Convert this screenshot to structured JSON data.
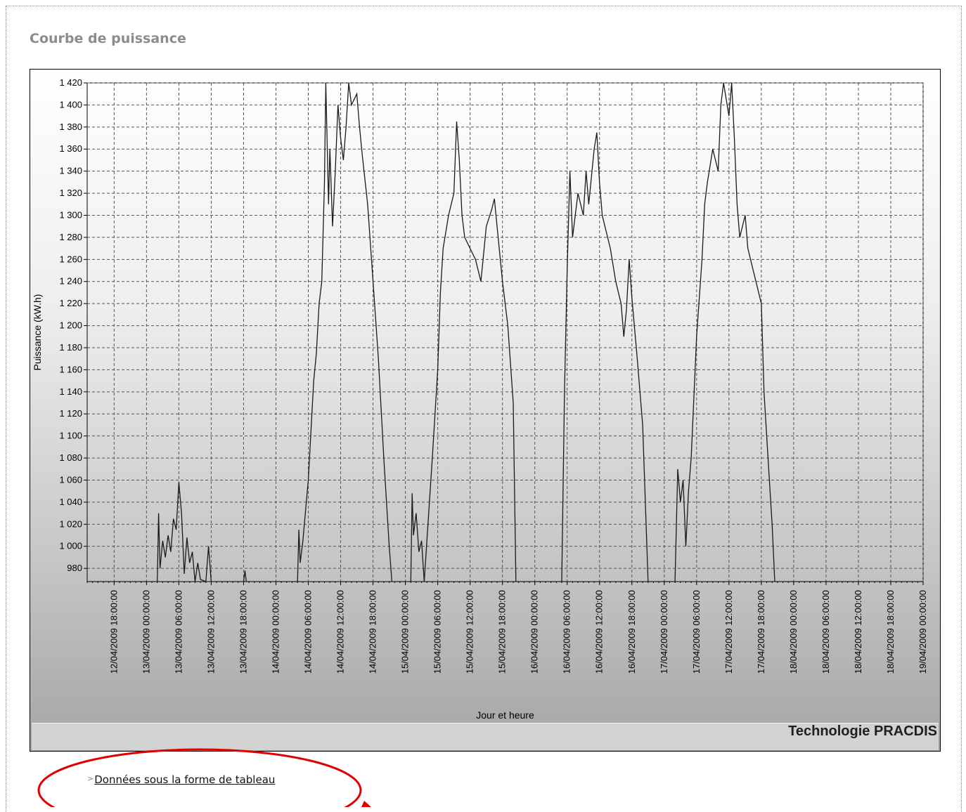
{
  "page": {
    "title": "Courbe de puissance"
  },
  "chart_footer": {
    "brand": "Technologie PRACDIS"
  },
  "table_link": {
    "label": "Données sous la forme de tableau"
  },
  "chart_data": {
    "type": "line",
    "xlabel": "Jour et heure",
    "ylabel": "Puissance (kW.h)",
    "ylim": [
      968,
      1420
    ],
    "yticks": [
      980,
      1000,
      1020,
      1040,
      1060,
      1080,
      1100,
      1120,
      1140,
      1160,
      1180,
      1200,
      1220,
      1240,
      1260,
      1280,
      1300,
      1320,
      1340,
      1360,
      1380,
      1400,
      1420
    ],
    "ytick_labels": [
      "980",
      "1 000",
      "1 020",
      "1 040",
      "1 060",
      "1 080",
      "1 100",
      "1 120",
      "1 140",
      "1 160",
      "1 180",
      "1 200",
      "1 220",
      "1 240",
      "1 260",
      "1 280",
      "1 300",
      "1 320",
      "1 340",
      "1 360",
      "1 380",
      "1 400",
      "1 420"
    ],
    "xlim": [
      "12/04/2009 13:00:00",
      "19/04/2009 00:00:00"
    ],
    "xticks": [
      "12/04/2009 18:00:00",
      "13/04/2009 00:00:00",
      "13/04/2009 06:00:00",
      "13/04/2009 12:00:00",
      "13/04/2009 18:00:00",
      "14/04/2009 00:00:00",
      "14/04/2009 06:00:00",
      "14/04/2009 12:00:00",
      "14/04/2009 18:00:00",
      "15/04/2009 00:00:00",
      "15/04/2009 06:00:00",
      "15/04/2009 12:00:00",
      "15/04/2009 18:00:00",
      "16/04/2009 00:00:00",
      "16/04/2009 06:00:00",
      "16/04/2009 12:00:00",
      "16/04/2009 18:00:00",
      "17/04/2009 00:00:00",
      "17/04/2009 06:00:00",
      "17/04/2009 12:00:00",
      "17/04/2009 18:00:00",
      "18/04/2009 00:00:00",
      "18/04/2009 06:00:00",
      "18/04/2009 12:00:00",
      "18/04/2009 18:00:00",
      "19/04/2009 00:00:00"
    ],
    "grid": true,
    "series": [
      {
        "values": [
          [
            "12/04/2009 13:00:00",
            968
          ],
          [
            "13/04/2009 02:00:00",
            968
          ],
          [
            "13/04/2009 02:15:00",
            1030
          ],
          [
            "13/04/2009 02:30:00",
            980
          ],
          [
            "13/04/2009 03:00:00",
            1005
          ],
          [
            "13/04/2009 03:30:00",
            990
          ],
          [
            "13/04/2009 04:00:00",
            1010
          ],
          [
            "13/04/2009 04:30:00",
            995
          ],
          [
            "13/04/2009 05:00:00",
            1025
          ],
          [
            "13/04/2009 05:30:00",
            1015
          ],
          [
            "13/04/2009 06:00:00",
            1058
          ],
          [
            "13/04/2009 06:30:00",
            1030
          ],
          [
            "13/04/2009 07:00:00",
            975
          ],
          [
            "13/04/2009 07:30:00",
            1008
          ],
          [
            "13/04/2009 08:00:00",
            985
          ],
          [
            "13/04/2009 08:30:00",
            995
          ],
          [
            "13/04/2009 09:00:00",
            968
          ],
          [
            "13/04/2009 09:30:00",
            985
          ],
          [
            "13/04/2009 10:00:00",
            970
          ],
          [
            "13/04/2009 11:00:00",
            968
          ],
          [
            "13/04/2009 11:30:00",
            1000
          ],
          [
            "13/04/2009 12:00:00",
            968
          ],
          [
            "13/04/2009 18:00:00",
            968
          ],
          [
            "13/04/2009 18:15:00",
            978
          ],
          [
            "13/04/2009 18:30:00",
            968
          ],
          [
            "14/04/2009 04:00:00",
            968
          ],
          [
            "14/04/2009 04:15:00",
            1015
          ],
          [
            "14/04/2009 04:30:00",
            985
          ],
          [
            "14/04/2009 05:00:00",
            1005
          ],
          [
            "14/04/2009 06:00:00",
            1060
          ],
          [
            "14/04/2009 07:00:00",
            1150
          ],
          [
            "14/04/2009 07:30:00",
            1175
          ],
          [
            "14/04/2009 08:00:00",
            1220
          ],
          [
            "14/04/2009 08:30:00",
            1240
          ],
          [
            "14/04/2009 09:00:00",
            1330
          ],
          [
            "14/04/2009 09:15:00",
            1420
          ],
          [
            "14/04/2009 09:45:00",
            1310
          ],
          [
            "14/04/2009 10:00:00",
            1360
          ],
          [
            "14/04/2009 10:30:00",
            1290
          ],
          [
            "14/04/2009 11:00:00",
            1340
          ],
          [
            "14/04/2009 11:30:00",
            1400
          ],
          [
            "14/04/2009 12:00:00",
            1370
          ],
          [
            "14/04/2009 12:30:00",
            1350
          ],
          [
            "14/04/2009 13:00:00",
            1380
          ],
          [
            "14/04/2009 13:30:00",
            1420
          ],
          [
            "14/04/2009 14:00:00",
            1400
          ],
          [
            "14/04/2009 15:00:00",
            1410
          ],
          [
            "14/04/2009 15:30:00",
            1380
          ],
          [
            "14/04/2009 16:00:00",
            1355
          ],
          [
            "14/04/2009 17:00:00",
            1310
          ],
          [
            "14/04/2009 18:00:00",
            1240
          ],
          [
            "14/04/2009 19:00:00",
            1170
          ],
          [
            "14/04/2009 20:00:00",
            1080
          ],
          [
            "14/04/2009 21:00:00",
            1000
          ],
          [
            "14/04/2009 21:30:00",
            968
          ],
          [
            "15/04/2009 01:00:00",
            968
          ],
          [
            "15/04/2009 01:15:00",
            1048
          ],
          [
            "15/04/2009 01:30:00",
            1010
          ],
          [
            "15/04/2009 02:00:00",
            1030
          ],
          [
            "15/04/2009 02:30:00",
            995
          ],
          [
            "15/04/2009 03:00:00",
            1005
          ],
          [
            "15/04/2009 03:30:00",
            968
          ],
          [
            "15/04/2009 05:00:00",
            1080
          ],
          [
            "15/04/2009 06:00:00",
            1160
          ],
          [
            "15/04/2009 06:30:00",
            1230
          ],
          [
            "15/04/2009 07:00:00",
            1270
          ],
          [
            "15/04/2009 08:00:00",
            1300
          ],
          [
            "15/04/2009 09:00:00",
            1320
          ],
          [
            "15/04/2009 09:30:00",
            1385
          ],
          [
            "15/04/2009 10:00:00",
            1350
          ],
          [
            "15/04/2009 10:30:00",
            1300
          ],
          [
            "15/04/2009 11:00:00",
            1280
          ],
          [
            "15/04/2009 12:00:00",
            1270
          ],
          [
            "15/04/2009 13:00:00",
            1260
          ],
          [
            "15/04/2009 14:00:00",
            1240
          ],
          [
            "15/04/2009 15:00:00",
            1290
          ],
          [
            "15/04/2009 16:00:00",
            1305
          ],
          [
            "15/04/2009 16:30:00",
            1315
          ],
          [
            "15/04/2009 17:00:00",
            1290
          ],
          [
            "15/04/2009 18:00:00",
            1240
          ],
          [
            "15/04/2009 19:00:00",
            1200
          ],
          [
            "15/04/2009 20:00:00",
            1130
          ],
          [
            "15/04/2009 20:30:00",
            968
          ],
          [
            "16/04/2009 05:00:00",
            968
          ],
          [
            "16/04/2009 05:30:00",
            1140
          ],
          [
            "16/04/2009 06:00:00",
            1250
          ],
          [
            "16/04/2009 06:30:00",
            1340
          ],
          [
            "16/04/2009 07:00:00",
            1280
          ],
          [
            "16/04/2009 07:30:00",
            1300
          ],
          [
            "16/04/2009 08:00:00",
            1320
          ],
          [
            "16/04/2009 09:00:00",
            1300
          ],
          [
            "16/04/2009 09:30:00",
            1340
          ],
          [
            "16/04/2009 10:00:00",
            1310
          ],
          [
            "16/04/2009 11:00:00",
            1360
          ],
          [
            "16/04/2009 11:30:00",
            1375
          ],
          [
            "16/04/2009 12:00:00",
            1330
          ],
          [
            "16/04/2009 12:30:00",
            1300
          ],
          [
            "16/04/2009 13:00:00",
            1290
          ],
          [
            "16/04/2009 14:00:00",
            1270
          ],
          [
            "16/04/2009 15:00:00",
            1240
          ],
          [
            "16/04/2009 16:00:00",
            1220
          ],
          [
            "16/04/2009 16:30:00",
            1190
          ],
          [
            "16/04/2009 17:00:00",
            1215
          ],
          [
            "16/04/2009 17:30:00",
            1260
          ],
          [
            "16/04/2009 18:00:00",
            1225
          ],
          [
            "16/04/2009 19:00:00",
            1170
          ],
          [
            "16/04/2009 20:00:00",
            1110
          ],
          [
            "16/04/2009 21:00:00",
            968
          ],
          [
            "17/04/2009 02:00:00",
            968
          ],
          [
            "17/04/2009 02:30:00",
            1070
          ],
          [
            "17/04/2009 03:00:00",
            1040
          ],
          [
            "17/04/2009 03:30:00",
            1060
          ],
          [
            "17/04/2009 04:00:00",
            1000
          ],
          [
            "17/04/2009 04:30:00",
            1050
          ],
          [
            "17/04/2009 05:00:00",
            1080
          ],
          [
            "17/04/2009 06:00:00",
            1190
          ],
          [
            "17/04/2009 07:00:00",
            1260
          ],
          [
            "17/04/2009 07:30:00",
            1310
          ],
          [
            "17/04/2009 08:00:00",
            1330
          ],
          [
            "17/04/2009 09:00:00",
            1360
          ],
          [
            "17/04/2009 10:00:00",
            1340
          ],
          [
            "17/04/2009 10:30:00",
            1400
          ],
          [
            "17/04/2009 11:00:00",
            1420
          ],
          [
            "17/04/2009 12:00:00",
            1390
          ],
          [
            "17/04/2009 12:30:00",
            1420
          ],
          [
            "17/04/2009 13:00:00",
            1370
          ],
          [
            "17/04/2009 13:30:00",
            1310
          ],
          [
            "17/04/2009 14:00:00",
            1280
          ],
          [
            "17/04/2009 15:00:00",
            1300
          ],
          [
            "17/04/2009 15:30:00",
            1270
          ],
          [
            "17/04/2009 16:00:00",
            1260
          ],
          [
            "17/04/2009 17:00:00",
            1240
          ],
          [
            "17/04/2009 18:00:00",
            1220
          ],
          [
            "17/04/2009 18:30:00",
            1140
          ],
          [
            "17/04/2009 19:00:00",
            1100
          ],
          [
            "17/04/2009 20:00:00",
            1020
          ],
          [
            "17/04/2009 20:30:00",
            968
          ],
          [
            "19/04/2009 00:00:00",
            968
          ]
        ]
      }
    ]
  }
}
